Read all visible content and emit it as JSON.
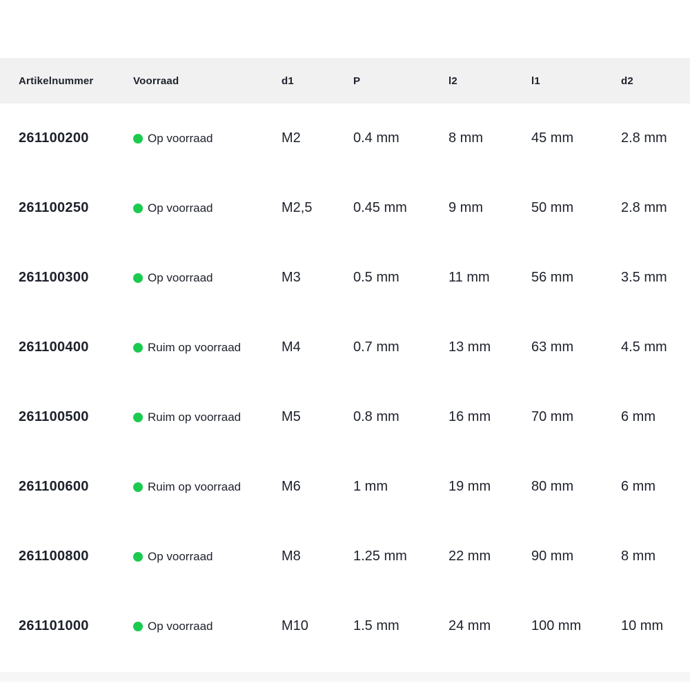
{
  "colors": {
    "stock_green": "#1bcb4f",
    "header_bg": "#f1f1f1",
    "text": "#1d212b"
  },
  "table": {
    "columns": [
      {
        "key": "artikelnummer",
        "label": "Artikelnummer"
      },
      {
        "key": "voorraad",
        "label": "Voorraad"
      },
      {
        "key": "d1",
        "label": "d1"
      },
      {
        "key": "p",
        "label": "P"
      },
      {
        "key": "l2",
        "label": "l2"
      },
      {
        "key": "l1",
        "label": "l1"
      },
      {
        "key": "d2",
        "label": "d2"
      }
    ],
    "rows": [
      {
        "artikelnummer": "261100200",
        "voorraad": "Op voorraad",
        "d1": "M2",
        "p": "0.4 mm",
        "l2": "8 mm",
        "l1": "45 mm",
        "d2": "2.8 mm"
      },
      {
        "artikelnummer": "261100250",
        "voorraad": "Op voorraad",
        "d1": "M2,5",
        "p": "0.45 mm",
        "l2": "9 mm",
        "l1": "50 mm",
        "d2": "2.8 mm"
      },
      {
        "artikelnummer": "261100300",
        "voorraad": "Op voorraad",
        "d1": "M3",
        "p": "0.5 mm",
        "l2": "11 mm",
        "l1": "56 mm",
        "d2": "3.5 mm"
      },
      {
        "artikelnummer": "261100400",
        "voorraad": "Ruim op voorraad",
        "d1": "M4",
        "p": "0.7 mm",
        "l2": "13 mm",
        "l1": "63 mm",
        "d2": "4.5 mm"
      },
      {
        "artikelnummer": "261100500",
        "voorraad": "Ruim op voorraad",
        "d1": "M5",
        "p": "0.8 mm",
        "l2": "16 mm",
        "l1": "70 mm",
        "d2": "6 mm"
      },
      {
        "artikelnummer": "261100600",
        "voorraad": "Ruim op voorraad",
        "d1": "M6",
        "p": "1 mm",
        "l2": "19 mm",
        "l1": "80 mm",
        "d2": "6 mm"
      },
      {
        "artikelnummer": "261100800",
        "voorraad": "Op voorraad",
        "d1": "M8",
        "p": "1.25 mm",
        "l2": "22 mm",
        "l1": "90 mm",
        "d2": "8 mm"
      },
      {
        "artikelnummer": "261101000",
        "voorraad": "Op voorraad",
        "d1": "M10",
        "p": "1.5 mm",
        "l2": "24 mm",
        "l1": "100 mm",
        "d2": "10 mm"
      }
    ]
  }
}
